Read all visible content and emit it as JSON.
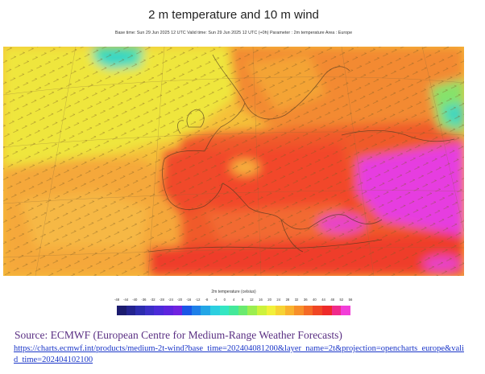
{
  "figure": {
    "title": "2 m temperature and 10 m wind",
    "subtitle": "Base time: Sun 29 Jun 2025 12 UTC  Valid time: Sun 29 Jun 2025 12 UTC (+0h)  Parameter : 2m temperature  Area : Europe"
  },
  "legend": {
    "title": "2m temperature (celsius)",
    "ticks": [
      "-48",
      "-44",
      "-40",
      "-36",
      "-32",
      "-28",
      "-24",
      "-20",
      "-16",
      "-12",
      "-8",
      "-4",
      "0",
      "4",
      "8",
      "12",
      "16",
      "20",
      "24",
      "28",
      "32",
      "36",
      "40",
      "44",
      "48",
      "52",
      "56"
    ],
    "colors": [
      "#1b1b6e",
      "#23238f",
      "#2c2cae",
      "#3b2fc6",
      "#4b2bd8",
      "#5d24de",
      "#7022e0",
      "#1a55e6",
      "#1e7fe8",
      "#23a6e6",
      "#2ccfe0",
      "#35e6c2",
      "#44e89a",
      "#6aea6f",
      "#9bee50",
      "#cdf23c",
      "#f2f03a",
      "#f7d334",
      "#f9b22e",
      "#f78f2a",
      "#f46a26",
      "#f04624",
      "#ee2a2a",
      "#f02a8a",
      "#f23ed8"
    ]
  },
  "source": {
    "text": "Source: ECMWF (European Centre for Medium-Range Weather Forecasts)",
    "url": "https://charts.ecmwf.int/products/medium-2t-wind?base_time=202404081200&layer_name=2t&projection=opencharts_europe&valid_time=202404102100"
  },
  "colors": {
    "ocean_yellow": "#f1ee3c",
    "warm_orange": "#f7a43a",
    "hot_red": "#f04a2a",
    "extreme_magenta": "#e63ce0",
    "cool_green": "#4fe0a8"
  }
}
